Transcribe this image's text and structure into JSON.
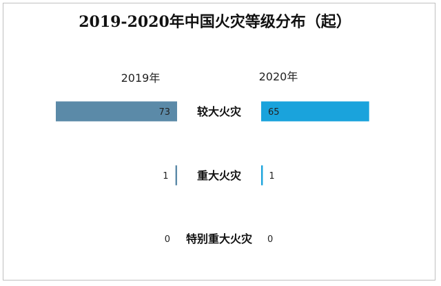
{
  "chart_data": {
    "type": "bar",
    "title": "2019-2020年中国火灾等级分布（起）",
    "categories": [
      "较大火灾",
      "重大火灾",
      "特别重大火灾"
    ],
    "series": [
      {
        "name": "2019年",
        "values": [
          73,
          1,
          0
        ],
        "color": "#5b8aa8"
      },
      {
        "name": "2020年",
        "values": [
          65,
          1,
          0
        ],
        "color": "#1aa3dc"
      }
    ],
    "max_value": 73,
    "layout_note": "back-to-back horizontal bars: 2019 extends left, 2020 extends right"
  }
}
